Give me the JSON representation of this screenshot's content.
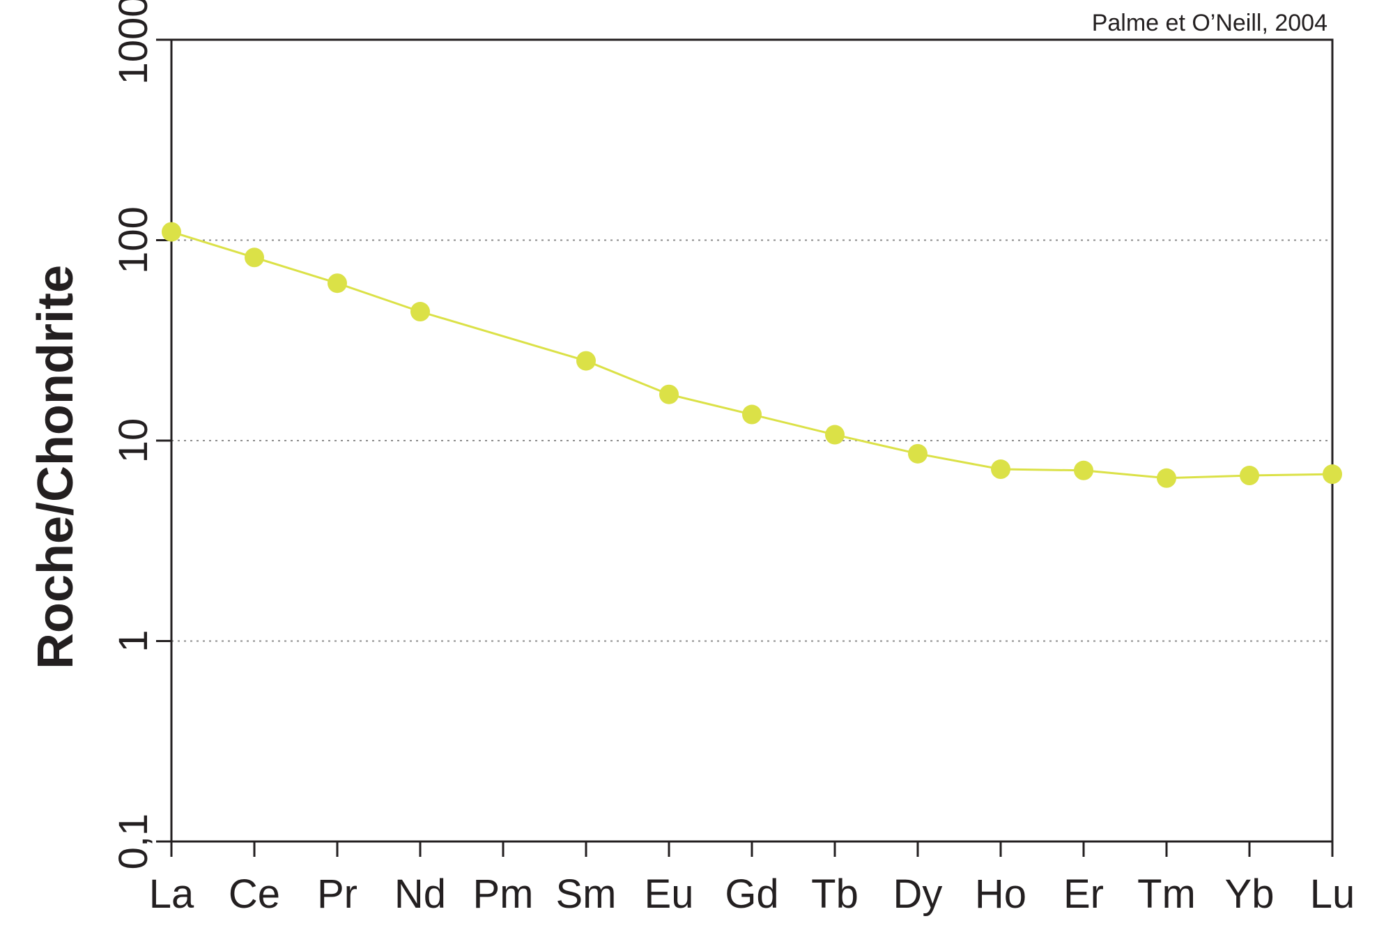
{
  "source_note": "Palme et O’Neill, 2004",
  "colors": {
    "series": "#dbe147",
    "axis": "#231f20",
    "grid": "#8c8c8c"
  },
  "chart_data": {
    "type": "line",
    "title": "",
    "xlabel": "",
    "ylabel": "Roche/Chondrite",
    "yscale": "log",
    "ylim": [
      0.1,
      1000
    ],
    "grid": "horizontal dotted",
    "categories": [
      "La",
      "Ce",
      "Pr",
      "Nd",
      "Pm",
      "Sm",
      "Eu",
      "Gd",
      "Tb",
      "Dy",
      "Ho",
      "Er",
      "Tm",
      "Yb",
      "Lu"
    ],
    "yticks": [
      {
        "value": 0.1,
        "label": "0,1"
      },
      {
        "value": 1,
        "label": "1"
      },
      {
        "value": 10,
        "label": "10"
      },
      {
        "value": 100,
        "label": "100"
      },
      {
        "value": 1000,
        "label": "1000"
      }
    ],
    "series": [
      {
        "values": [
          110,
          82,
          61,
          44,
          null,
          25,
          17,
          13.5,
          10.7,
          8.6,
          7.2,
          7.1,
          6.5,
          6.7,
          6.8
        ]
      }
    ]
  }
}
